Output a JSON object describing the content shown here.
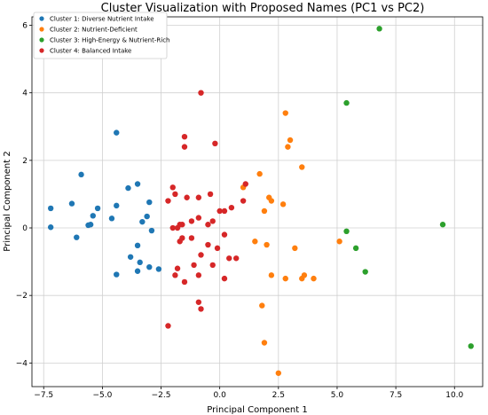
{
  "chart_data": {
    "type": "scatter",
    "title": "Cluster Visualization with Proposed Names (PC1 vs PC2)",
    "xlabel": "Principal Component 1",
    "ylabel": "Principal Component 2",
    "xlim": [
      -8.0,
      11.2
    ],
    "ylim": [
      -4.7,
      6.25
    ],
    "xticks": [
      -7.5,
      -5.0,
      -2.5,
      0.0,
      2.5,
      5.0,
      7.5,
      10.0
    ],
    "xtick_labels": [
      "−7.5",
      "−5.0",
      "−2.5",
      "0.0",
      "2.5",
      "5.0",
      "7.5",
      "10.0"
    ],
    "yticks": [
      -4,
      -2,
      0,
      2,
      4,
      6
    ],
    "ytick_labels": [
      "−4",
      "−2",
      "0",
      "2",
      "4",
      "6"
    ],
    "grid": true,
    "legend_position": "top-left",
    "series": [
      {
        "name": "Cluster 1: Diverse Nutrient Intake",
        "color": "#1f77b4",
        "points": [
          [
            -7.2,
            0.58
          ],
          [
            -7.2,
            0.02
          ],
          [
            -6.3,
            0.72
          ],
          [
            -6.1,
            -0.28
          ],
          [
            -5.9,
            1.58
          ],
          [
            -5.6,
            0.08
          ],
          [
            -5.5,
            0.1
          ],
          [
            -5.4,
            0.36
          ],
          [
            -5.2,
            0.58
          ],
          [
            -4.6,
            0.28
          ],
          [
            -4.4,
            2.82
          ],
          [
            -4.4,
            0.66
          ],
          [
            -4.4,
            -1.38
          ],
          [
            -3.9,
            1.18
          ],
          [
            -3.8,
            -0.86
          ],
          [
            -3.5,
            1.3
          ],
          [
            -3.5,
            -0.52
          ],
          [
            -3.5,
            -1.28
          ],
          [
            -3.4,
            -1.02
          ],
          [
            -3.3,
            0.18
          ],
          [
            -3.1,
            0.34
          ],
          [
            -3.0,
            -1.16
          ],
          [
            -3.0,
            0.76
          ],
          [
            -2.9,
            -0.08
          ],
          [
            -2.6,
            -1.22
          ]
        ]
      },
      {
        "name": "Cluster 2: Nutrient-Deficient",
        "color": "#ff7f0e",
        "points": [
          [
            1.0,
            1.2
          ],
          [
            1.5,
            -0.4
          ],
          [
            1.7,
            1.6
          ],
          [
            1.8,
            -2.3
          ],
          [
            1.9,
            0.5
          ],
          [
            1.9,
            -3.4
          ],
          [
            2.0,
            -0.5
          ],
          [
            2.1,
            0.9
          ],
          [
            2.2,
            0.8
          ],
          [
            2.2,
            -1.4
          ],
          [
            2.5,
            -4.3
          ],
          [
            2.7,
            0.7
          ],
          [
            2.8,
            -1.5
          ],
          [
            2.8,
            3.4
          ],
          [
            2.9,
            2.4
          ],
          [
            3.0,
            2.6
          ],
          [
            3.2,
            -0.6
          ],
          [
            3.5,
            1.8
          ],
          [
            3.5,
            -1.5
          ],
          [
            3.6,
            -1.4
          ],
          [
            4.0,
            -1.5
          ],
          [
            5.1,
            -0.4
          ]
        ]
      },
      {
        "name": "Cluster 3: High-Energy & Nutrient-Rich",
        "color": "#2ca02c",
        "points": [
          [
            5.4,
            3.7
          ],
          [
            5.4,
            -0.1
          ],
          [
            5.8,
            -0.6
          ],
          [
            6.2,
            -1.3
          ],
          [
            6.8,
            5.9
          ],
          [
            9.5,
            0.1
          ],
          [
            10.7,
            -3.5
          ]
        ]
      },
      {
        "name": "Cluster 4: Balanced Intake",
        "color": "#d62728",
        "points": [
          [
            -0.8,
            4.0
          ],
          [
            -1.5,
            2.7
          ],
          [
            -1.5,
            2.4
          ],
          [
            -0.2,
            2.5
          ],
          [
            -2.0,
            1.2
          ],
          [
            -1.9,
            1.0
          ],
          [
            -2.2,
            0.8
          ],
          [
            -1.4,
            0.9
          ],
          [
            -0.9,
            0.9
          ],
          [
            -0.4,
            1.0
          ],
          [
            0.2,
            0.5
          ],
          [
            0.5,
            0.6
          ],
          [
            1.0,
            0.8
          ],
          [
            1.1,
            1.3
          ],
          [
            -2.0,
            0.0
          ],
          [
            -1.8,
            0.0
          ],
          [
            -1.7,
            0.1
          ],
          [
            -1.6,
            0.1
          ],
          [
            -1.2,
            0.2
          ],
          [
            -0.9,
            0.3
          ],
          [
            -0.5,
            0.1
          ],
          [
            -0.3,
            0.2
          ],
          [
            0.0,
            0.5
          ],
          [
            0.2,
            -0.2
          ],
          [
            -1.6,
            -0.3
          ],
          [
            -1.7,
            -0.4
          ],
          [
            -1.2,
            -0.3
          ],
          [
            -0.8,
            -0.8
          ],
          [
            -0.5,
            -0.5
          ],
          [
            -0.1,
            -0.6
          ],
          [
            0.4,
            -0.9
          ],
          [
            0.7,
            -0.9
          ],
          [
            -1.8,
            -1.2
          ],
          [
            -1.5,
            -1.6
          ],
          [
            -1.1,
            -1.1
          ],
          [
            -0.9,
            -1.4
          ],
          [
            -0.3,
            -1.1
          ],
          [
            0.2,
            -1.5
          ],
          [
            -0.9,
            -2.2
          ],
          [
            -0.8,
            -2.4
          ],
          [
            -2.2,
            -2.9
          ],
          [
            -1.9,
            -1.4
          ]
        ]
      }
    ]
  }
}
